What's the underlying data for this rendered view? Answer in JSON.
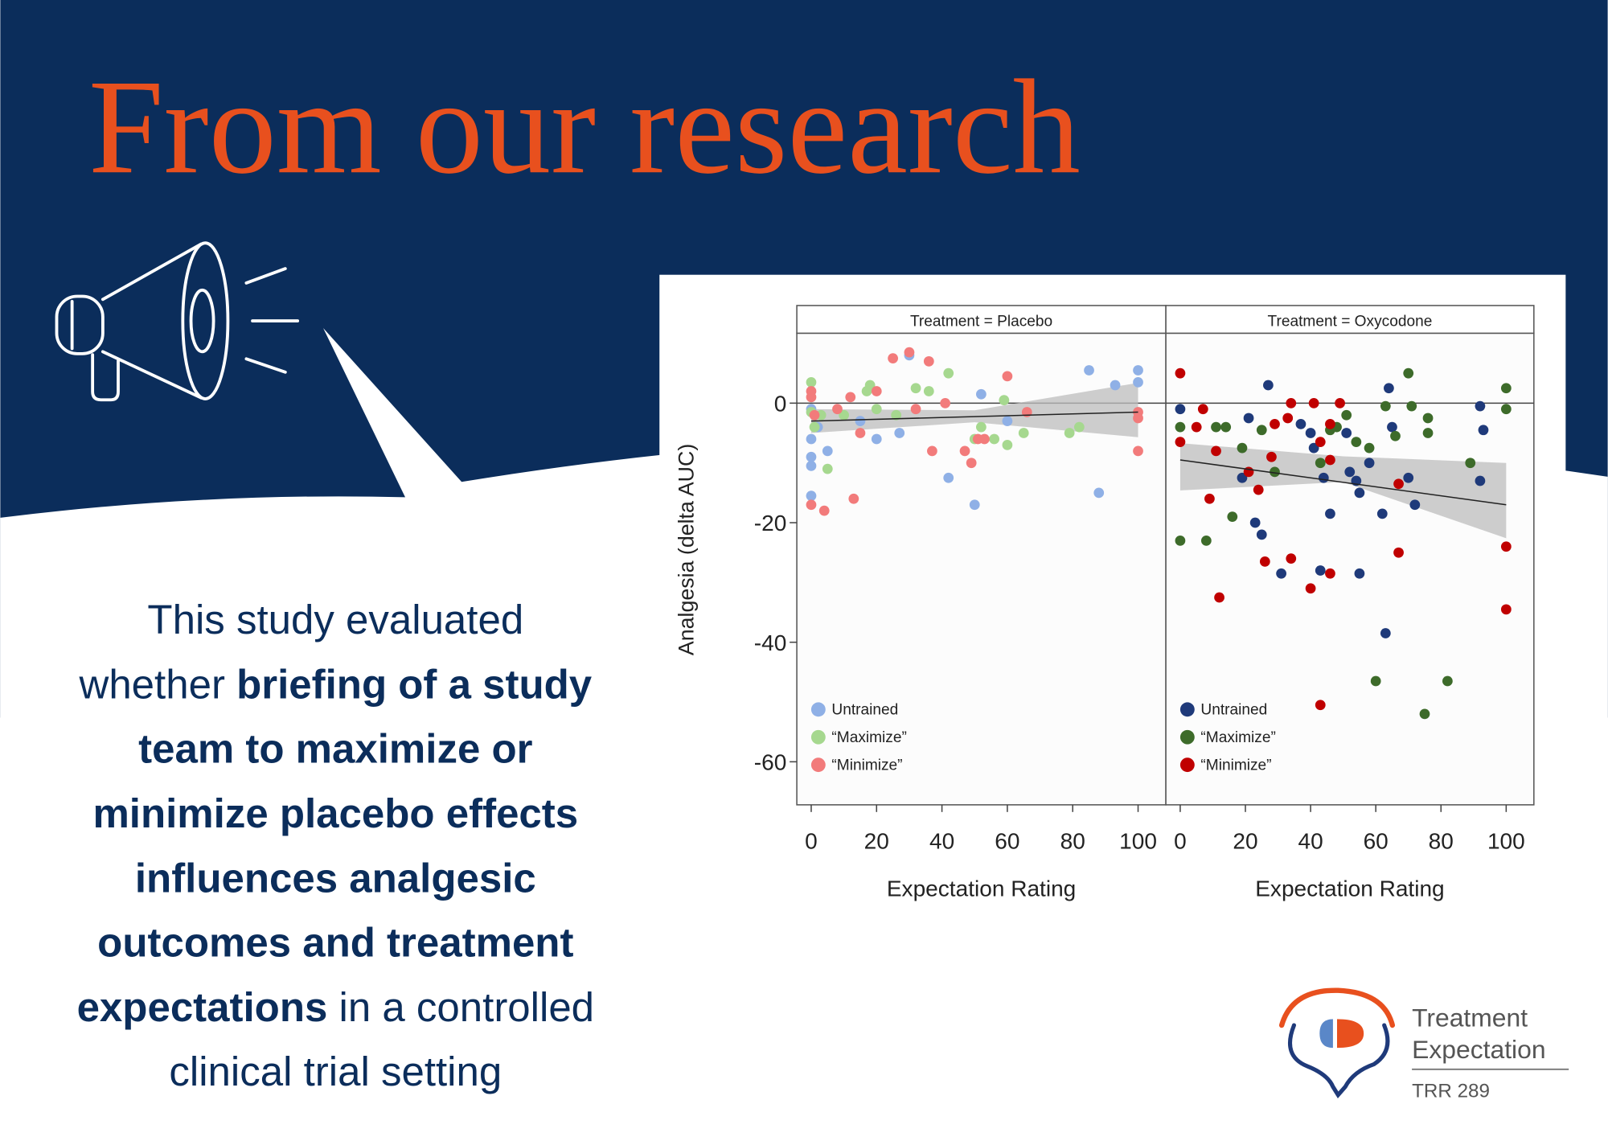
{
  "header": {
    "title": "From our research"
  },
  "body": {
    "lines": [
      [
        {
          "text": "This study evaluated",
          "bold": false
        }
      ],
      [
        {
          "text": "whether ",
          "bold": false
        },
        {
          "text": "briefing of a study",
          "bold": true
        }
      ],
      [
        {
          "text": "team to maximize or",
          "bold": true
        }
      ],
      [
        {
          "text": "minimize placebo effects",
          "bold": true
        }
      ],
      [
        {
          "text": "influences analgesic",
          "bold": true
        }
      ],
      [
        {
          "text": "outcomes and treatment",
          "bold": true
        }
      ],
      [
        {
          "text": "expectations",
          "bold": true
        },
        {
          "text": " in a controlled",
          "bold": false
        }
      ],
      [
        {
          "text": "clinical trial setting",
          "bold": false
        }
      ]
    ]
  },
  "logo": {
    "name": [
      "Treatment",
      "Expectation"
    ],
    "sub": "TRR 289"
  },
  "chart_data": [
    {
      "type": "scatter",
      "strip_title": "Treatment = Placebo",
      "xlabel": "Expectation Rating",
      "ylabel": "Analgesia (delta AUC)",
      "xlim": [
        -4.4,
        108.5
      ],
      "ylim": [
        -67.2,
        11.7
      ],
      "xticks": [
        0,
        20,
        40,
        60,
        80,
        100
      ],
      "yticks": [
        0,
        -20,
        -40,
        -60
      ],
      "legend": "lower left",
      "series": [
        {
          "name": "Untrained",
          "color": "#8fb0e6",
          "x": [
            0,
            0,
            0,
            0,
            0,
            2,
            5,
            15,
            20,
            27,
            30,
            42,
            50,
            52,
            60,
            85,
            88,
            100,
            100,
            93
          ],
          "values": [
            -1,
            -6,
            -9,
            -10.5,
            -15.5,
            -4,
            -8,
            -3,
            -6,
            -5,
            8,
            -12.5,
            -17,
            1.5,
            -3,
            5.5,
            -15,
            5.5,
            3.5,
            3
          ]
        },
        {
          "name": "“Maximize”",
          "color": "#a6d88f",
          "x": [
            0,
            0,
            1,
            3,
            5,
            10,
            17,
            18,
            20,
            26,
            32,
            36,
            42,
            50,
            52,
            56,
            59,
            60,
            65,
            79,
            82
          ],
          "values": [
            3.5,
            -1.5,
            -4,
            -2,
            -11,
            -2,
            2,
            3,
            -1,
            -2,
            2.5,
            2,
            5,
            -6,
            -4,
            -6,
            0.5,
            -7,
            -5,
            -5,
            -4
          ]
        },
        {
          "name": "“Minimize”",
          "color": "#f27b7b",
          "x": [
            0,
            0,
            0,
            1,
            4,
            8,
            12,
            13,
            15,
            20,
            25,
            30,
            32,
            36,
            37,
            41,
            47,
            49,
            51,
            53,
            60,
            66,
            100,
            100,
            100
          ],
          "values": [
            2,
            1,
            -17,
            -2,
            -18,
            -1,
            1,
            -16,
            -5,
            2,
            7.5,
            8.5,
            -1,
            7,
            -8,
            0,
            -8,
            -10,
            -6,
            -6,
            4.5,
            -1.5,
            -1.5,
            -2.5,
            -8
          ]
        }
      ],
      "fit": {
        "x": [
          0,
          100
        ],
        "values": [
          -3,
          -1.5
        ]
      },
      "band": {
        "x": [
          0,
          50,
          100
        ],
        "lower": [
          -5,
          -3.2,
          -5.7
        ],
        "upper": [
          -1,
          -1.2,
          3.4
        ]
      }
    },
    {
      "type": "scatter",
      "strip_title": "Treatment = Oxycodone",
      "xlabel": "Expectation Rating",
      "xlim": [
        -4.4,
        108.5
      ],
      "ylim": [
        -67.2,
        11.7
      ],
      "xticks": [
        0,
        20,
        40,
        60,
        80,
        100
      ],
      "legend": "lower left",
      "series": [
        {
          "name": "Untrained",
          "color": "#1f3a7a",
          "x": [
            0,
            21,
            27,
            23,
            25,
            31,
            37,
            40,
            41,
            44,
            46,
            43,
            51,
            52,
            54,
            55,
            55,
            62,
            63,
            64,
            65,
            72,
            70,
            92,
            92,
            93,
            19,
            58
          ],
          "values": [
            -1,
            -2.5,
            3,
            -20,
            -22,
            -28.5,
            -3.5,
            -5,
            -7.5,
            -12.5,
            -18.5,
            -28,
            -5,
            -11.5,
            -13,
            -15,
            -28.5,
            -18.5,
            -38.5,
            2.5,
            -4,
            -17,
            -12.5,
            -0.5,
            -13,
            -4.5,
            -12.5,
            -10
          ]
        },
        {
          "name": "“Maximize”",
          "color": "#3d6b2a",
          "x": [
            0,
            0,
            8,
            11,
            14,
            16,
            19,
            25,
            29,
            43,
            46,
            48,
            51,
            54,
            58,
            60,
            63,
            66,
            70,
            71,
            76,
            76,
            75,
            82,
            89,
            100,
            100
          ],
          "values": [
            -4,
            -23,
            -23,
            -4,
            -4,
            -19,
            -7.5,
            -4.5,
            -11.5,
            -10,
            -4.5,
            -4,
            -2,
            -6.5,
            -7.5,
            -46.5,
            -0.5,
            -5.5,
            5,
            -0.5,
            -5,
            -2.5,
            -52,
            -46.5,
            -10,
            2.5,
            -1
          ]
        },
        {
          "name": "“Minimize”",
          "color": "#c00000",
          "x": [
            0,
            0,
            5,
            7,
            9,
            11,
            12,
            21,
            24,
            26,
            28,
            29,
            33,
            34,
            34,
            40,
            41,
            43,
            43,
            46,
            46,
            49,
            46,
            67,
            67,
            100,
            100
          ],
          "values": [
            5,
            -6.5,
            -4,
            -1,
            -16,
            -8,
            -32.5,
            -11.5,
            -14.5,
            -26.5,
            -9,
            -3.5,
            -2.5,
            0,
            -26,
            -31,
            0,
            -6.5,
            -50.5,
            -9.5,
            -3.5,
            0,
            -28.5,
            -13.5,
            -25,
            -24,
            -34.5
          ]
        }
      ],
      "fit": {
        "x": [
          0,
          100
        ],
        "values": [
          -9.5,
          -17
        ]
      },
      "band": {
        "x": [
          0,
          50,
          100
        ],
        "lower": [
          -14.6,
          -13.2,
          -22.6
        ],
        "upper": [
          -6.7,
          -8.9,
          -10
        ]
      }
    }
  ]
}
